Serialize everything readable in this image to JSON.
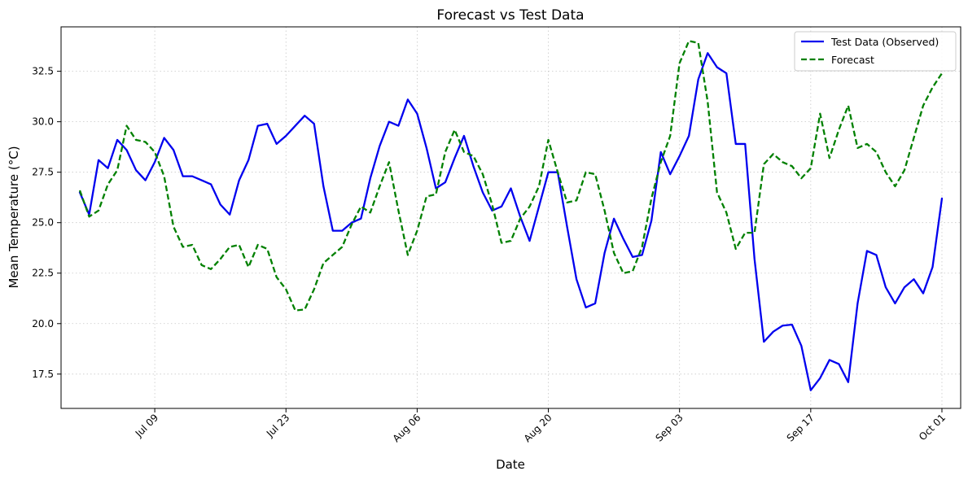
{
  "chart_data": {
    "type": "line",
    "title": "Forecast vs Test Data",
    "xlabel": "Date",
    "ylabel": "Mean Temperature (°C)",
    "x_start": "2023-07-01",
    "xlim": [
      "2023-06-29",
      "2023-10-03"
    ],
    "ylim": [
      15.8,
      34.7
    ],
    "x_ticks": [
      "2023-07-09",
      "2023-07-23",
      "2023-08-06",
      "2023-08-20",
      "2023-09-03",
      "2023-09-17",
      "2023-10-01"
    ],
    "x_tick_labels": [
      "Jul 09",
      "Jul 23",
      "Aug 06",
      "Aug 20",
      "Sep 03",
      "Sep 17",
      "Oct 01"
    ],
    "y_ticks": [
      17.5,
      20.0,
      22.5,
      25.0,
      27.5,
      30.0,
      32.5
    ],
    "y_tick_labels": [
      "17.5",
      "20.0",
      "22.5",
      "25.0",
      "27.5",
      "30.0",
      "32.5"
    ],
    "grid": true,
    "legend_position": "top-right",
    "series": [
      {
        "name": "Test Data (Observed)",
        "color": "#0000ee",
        "style": "solid",
        "values": [
          26.5,
          25.4,
          28.1,
          27.7,
          29.1,
          28.6,
          27.6,
          27.1,
          28.0,
          29.2,
          28.6,
          27.3,
          27.3,
          27.1,
          26.9,
          25.9,
          25.4,
          27.1,
          28.1,
          29.8,
          29.9,
          28.9,
          29.3,
          29.8,
          30.3,
          29.9,
          26.8,
          24.6,
          24.6,
          25.0,
          25.2,
          27.2,
          28.8,
          30.0,
          29.8,
          31.1,
          30.4,
          28.7,
          26.7,
          27.0,
          28.2,
          29.3,
          27.8,
          26.5,
          25.6,
          25.8,
          26.7,
          25.3,
          24.1,
          25.8,
          27.5,
          27.5,
          24.8,
          22.2,
          20.8,
          21.0,
          23.5,
          25.2,
          24.2,
          23.3,
          23.4,
          25.1,
          28.5,
          27.4,
          28.3,
          29.3,
          32.1,
          33.4,
          32.7,
          32.4,
          28.9,
          28.9,
          23.2,
          19.1,
          19.6,
          19.9,
          19.95,
          18.9,
          16.7,
          17.3,
          18.2,
          18.0,
          17.1,
          21.0,
          23.6,
          23.4,
          21.8,
          21.0,
          21.8,
          22.2,
          21.5,
          22.8,
          26.2
        ]
      },
      {
        "name": "Forecast",
        "color": "#008000",
        "style": "dashed",
        "values": [
          26.6,
          25.3,
          25.6,
          26.9,
          27.6,
          29.8,
          29.1,
          29.0,
          28.5,
          27.3,
          24.8,
          23.8,
          23.9,
          22.9,
          22.7,
          23.2,
          23.8,
          23.9,
          22.8,
          23.9,
          23.7,
          22.3,
          21.7,
          20.65,
          20.7,
          21.7,
          23.0,
          23.4,
          23.8,
          24.9,
          25.8,
          25.5,
          26.8,
          28.0,
          25.6,
          23.4,
          24.6,
          26.3,
          26.4,
          28.5,
          29.6,
          28.5,
          28.3,
          27.4,
          25.9,
          24.0,
          24.1,
          25.2,
          25.8,
          26.8,
          29.1,
          27.5,
          26.0,
          26.1,
          27.5,
          27.4,
          25.6,
          23.5,
          22.5,
          22.6,
          23.8,
          26.2,
          28.0,
          29.3,
          32.9,
          34.0,
          33.9,
          31.0,
          26.5,
          25.5,
          23.7,
          24.5,
          24.5,
          27.9,
          28.4,
          28.0,
          27.8,
          27.2,
          27.7,
          30.4,
          28.2,
          29.6,
          30.8,
          28.7,
          28.9,
          28.5,
          27.5,
          26.8,
          27.6,
          29.2,
          30.8,
          31.7,
          32.4
        ]
      }
    ]
  }
}
